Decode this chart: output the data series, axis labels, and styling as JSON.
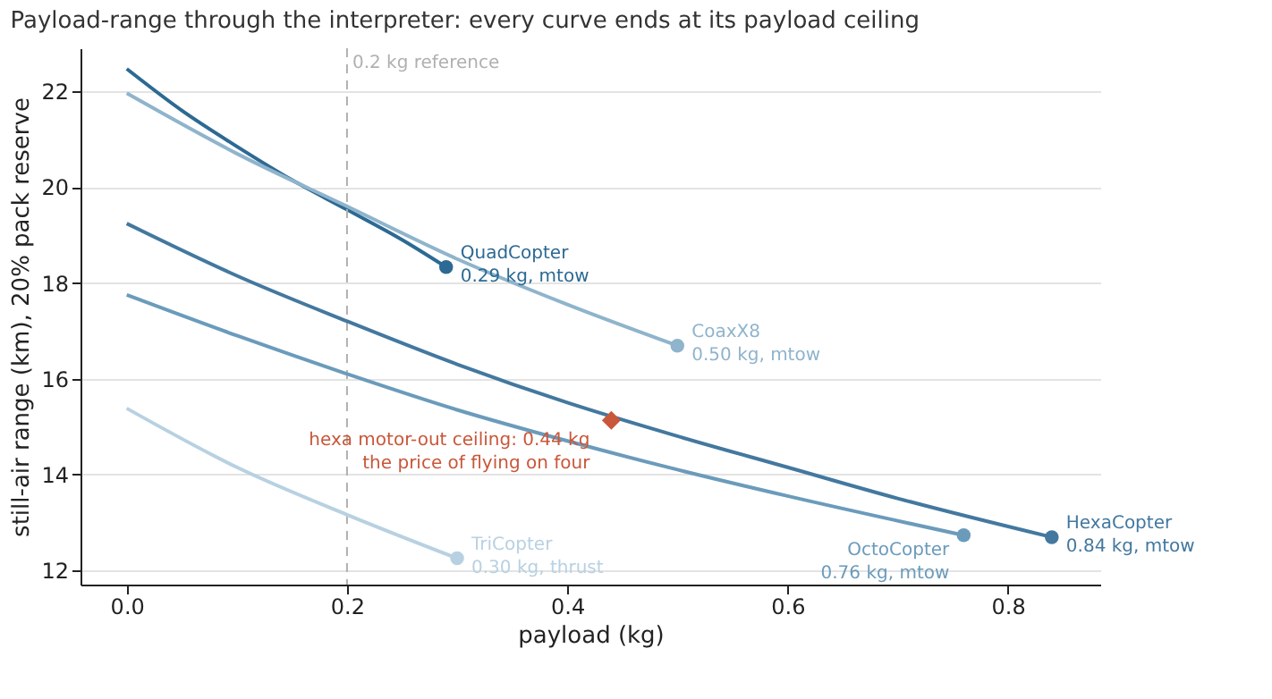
{
  "chart_data": {
    "type": "line",
    "title": "Payload-range through the interpreter: every curve ends at its payload ceiling",
    "xlabel": "payload (kg)",
    "ylabel": "still-air range (km), 20% pack reserve",
    "xlim": [
      -0.042,
      0.884
    ],
    "ylim": [
      11.7,
      22.9
    ],
    "xticks": [
      {
        "value": 0,
        "label": "0.0"
      },
      {
        "value": 0.2,
        "label": "0.2"
      },
      {
        "value": 0.4,
        "label": "0.4"
      },
      {
        "value": 0.6,
        "label": "0.6"
      },
      {
        "value": 0.8,
        "label": "0.8"
      }
    ],
    "yticks": [
      12,
      14,
      16,
      18,
      20,
      22
    ],
    "grid": "y",
    "line_style": "solid",
    "series": [
      {
        "color": "#2c6a93",
        "x": [
          0,
          0.05,
          0.1,
          0.15,
          0.2,
          0.25,
          0.29
        ],
        "values": [
          22.47,
          21.6,
          20.85,
          20.15,
          19.53,
          18.9,
          18.33
        ]
      },
      {
        "color": "#8fb4cc",
        "x": [
          0,
          0.1,
          0.2,
          0.3,
          0.4,
          0.5
        ],
        "values": [
          21.96,
          20.7,
          19.6,
          18.5,
          17.55,
          16.69
        ]
      },
      {
        "color": "#43789f",
        "x": [
          0,
          0.1,
          0.2,
          0.3,
          0.4,
          0.5,
          0.6,
          0.7,
          0.84
        ],
        "values": [
          19.24,
          18.15,
          17.2,
          16.3,
          15.5,
          14.8,
          14.15,
          13.5,
          12.69
        ]
      },
      {
        "color": "#6b9bbb",
        "x": [
          0,
          0.1,
          0.2,
          0.3,
          0.4,
          0.5,
          0.6,
          0.76
        ],
        "values": [
          17.75,
          16.9,
          16.1,
          15.35,
          14.7,
          14.1,
          13.55,
          12.73
        ]
      },
      {
        "color": "#b8d1e2",
        "x": [
          0,
          0.1,
          0.2,
          0.3
        ],
        "values": [
          15.38,
          14.15,
          13.16,
          12.25
        ]
      },
      {
        "type": "scatter",
        "marker": "circle",
        "x": [
          0.29,
          0.5,
          0.84,
          0.76,
          0.3
        ],
        "values": [
          18.33,
          16.69,
          12.69,
          12.73,
          12.25
        ],
        "colors": [
          "#2c6a93",
          "#8fb4cc",
          "#43789f",
          "#6b9bbb",
          "#b8d1e2"
        ]
      },
      {
        "type": "scatter",
        "marker": "diamond",
        "x": [
          0.44
        ],
        "values": [
          15.13
        ],
        "colors": [
          "#c9573a"
        ]
      }
    ],
    "ref_lines": [
      {
        "axis": "x",
        "value": 0.2,
        "label": "0.2 kg reference",
        "color": "#b0b0b0",
        "line_style": "dashed"
      }
    ],
    "annotations": [
      {
        "text": "QuadCopter\n0.29 kg, mtow",
        "x": 0.29,
        "y": 18.33
      },
      {
        "text": "CoaxX8\n0.50 kg, mtow",
        "x": 0.5,
        "y": 16.69
      },
      {
        "text": "OctoCopter\n0.76 kg, mtow",
        "x": 0.76,
        "y": 12.73
      },
      {
        "text": "HexaCopter\n0.84 kg, mtow",
        "x": 0.84,
        "y": 12.69
      },
      {
        "text": "TriCopter\n0.30 kg, thrust",
        "x": 0.3,
        "y": 12.25
      },
      {
        "text": "hexa motor-out ceiling: 0.44 kg\nthe price of flying on four",
        "x": 0.44,
        "y": 15.13
      }
    ]
  }
}
